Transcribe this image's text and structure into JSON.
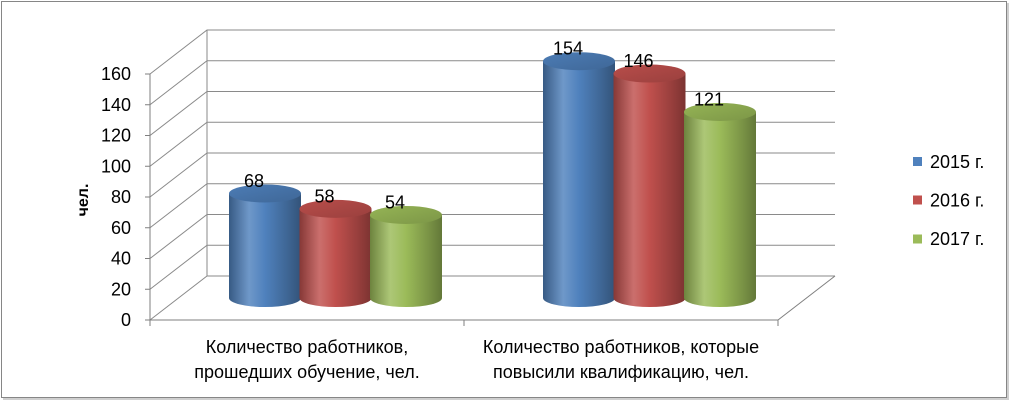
{
  "chart_data": {
    "type": "bar",
    "bar_shape": "cylinder",
    "three_d": true,
    "categories": [
      "Количество работников, прошедших обучение, чел.",
      "Количество работников, которые повысили квалификацию, чел."
    ],
    "series": [
      {
        "name": "2015 г.",
        "values": [
          68,
          154
        ],
        "color": "#4F81BD"
      },
      {
        "name": "2016 г.",
        "values": [
          58,
          146
        ],
        "color": "#C0504D"
      },
      {
        "name": "2017 г.",
        "values": [
          54,
          121
        ],
        "color": "#9BBB59"
      }
    ],
    "ylabel": "чел.",
    "ylim": [
      0,
      160
    ],
    "yticks": [
      0,
      20,
      40,
      60,
      80,
      100,
      120,
      140,
      160
    ],
    "data_labels": true,
    "grid": true,
    "legend": "right"
  }
}
